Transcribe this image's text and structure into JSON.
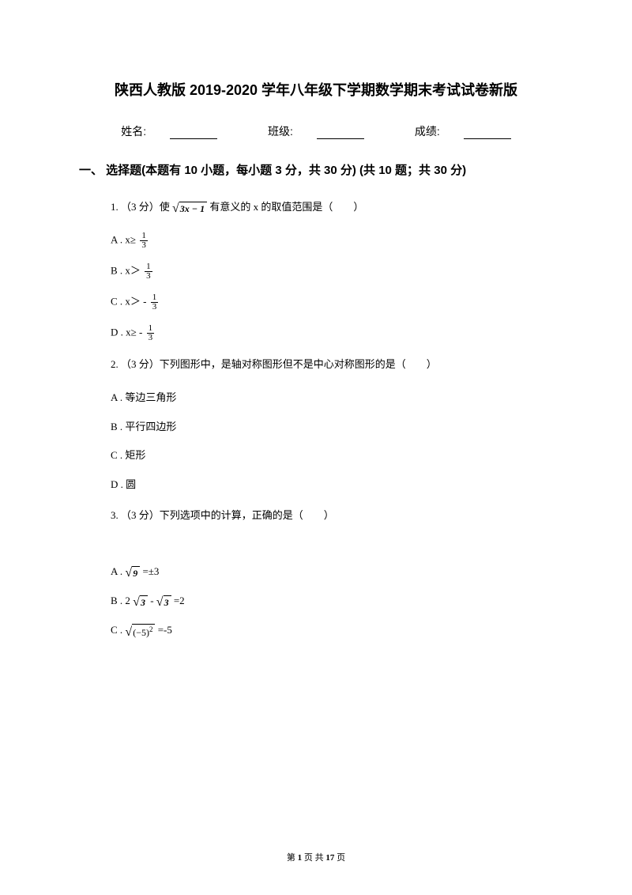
{
  "title": "陕西人教版 2019-2020 学年八年级下学期数学期末考试试卷新版",
  "info": {
    "name_label": "姓名:",
    "class_label": "班级:",
    "score_label": "成绩:"
  },
  "section1": {
    "heading": "一、 选择题(本题有 10 小题，每小题 3 分，共 30 分) (共 10 题；共 30 分)"
  },
  "q1": {
    "stem_pre": "1. （3 分）使 ",
    "sqrt_body": "3x − 1",
    "stem_post": " 有意义的 x 的取值范围是（　　）",
    "A_pre": "A . x≥ ",
    "B_pre": "B . x＞ ",
    "C_pre": "C . x＞ - ",
    "D_pre": "D . x≥ - ",
    "frac_num": "1",
    "frac_den": "3"
  },
  "q2": {
    "stem": "2. （3 分）下列图形中，是轴对称图形但不是中心对称图形的是（　　）",
    "A": "A . 等边三角形",
    "B": "B . 平行四边形",
    "C": "C . 矩形",
    "D": "D . 圆"
  },
  "q3": {
    "stem": "3. （3 分）下列选项中的计算，正确的是（　　）",
    "A_pre": "A . ",
    "A_sqrt": "9",
    "A_post": " =±3",
    "B_pre": "B . 2 ",
    "B_sqrt": "3",
    "B_mid": " - ",
    "B_sqrt2": "3",
    "B_post": " =2",
    "C_pre": "C . ",
    "C_sqrt": "(−5)",
    "C_sup": "2",
    "C_post": " =-5"
  },
  "footer": {
    "pre": "第 ",
    "cur": "1",
    "mid": " 页 共 ",
    "total": "17",
    "post": " 页"
  }
}
